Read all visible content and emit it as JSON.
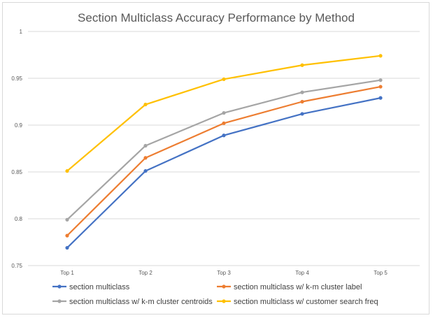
{
  "chart_data": {
    "type": "line",
    "title": "Section Multiclass Accuracy Performance by Method",
    "categories": [
      "Top 1",
      "Top 2",
      "Top 3",
      "Top 4",
      "Top 5"
    ],
    "ylim": [
      0.75,
      1
    ],
    "yticks": [
      0.75,
      0.8,
      0.85,
      0.9,
      0.95,
      1
    ],
    "ytick_labels": [
      "0.75",
      "0.8",
      "0.85",
      "0.9",
      "0.95",
      "1"
    ],
    "grid": true,
    "legend_position": "bottom",
    "series": [
      {
        "name": "section multiclass",
        "color": "#4472c4",
        "values": [
          0.769,
          0.851,
          0.889,
          0.912,
          0.929
        ]
      },
      {
        "name": "section multiclass w/ k-m cluster label",
        "color": "#ed7d31",
        "values": [
          0.782,
          0.865,
          0.902,
          0.925,
          0.941
        ]
      },
      {
        "name": "section multiclass w/ k-m cluster centroids",
        "color": "#a5a5a5",
        "values": [
          0.799,
          0.878,
          0.913,
          0.935,
          0.948
        ]
      },
      {
        "name": "section multiclass w/ customer search freq",
        "color": "#ffc000",
        "values": [
          0.851,
          0.922,
          0.949,
          0.964,
          0.974
        ]
      }
    ]
  }
}
